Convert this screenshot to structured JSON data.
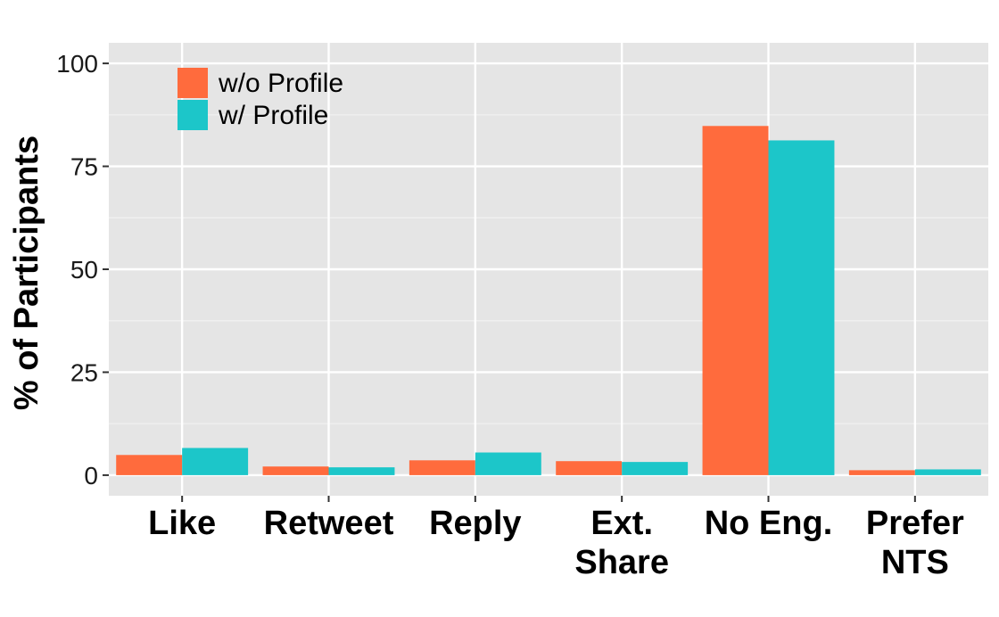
{
  "chart_data": {
    "type": "bar",
    "title": "",
    "xlabel": "",
    "ylabel": "% of Participants",
    "ylim": [
      -5,
      105
    ],
    "yticks": [
      0,
      25,
      50,
      75,
      100
    ],
    "grid": true,
    "legend_position": "top-left",
    "categories": [
      [
        "Like"
      ],
      [
        "Retweet"
      ],
      [
        "Reply"
      ],
      [
        "Ext.",
        "Share"
      ],
      [
        "No Eng."
      ],
      [
        "Prefer",
        "NTS"
      ]
    ],
    "series": [
      {
        "name": "w/o Profile",
        "color": "#FF6B3D",
        "values": [
          4.9,
          2.1,
          3.6,
          3.4,
          84.8,
          1.2
        ]
      },
      {
        "name": "w/ Profile",
        "color": "#1CC6C9",
        "values": [
          6.6,
          1.9,
          5.5,
          3.2,
          81.3,
          1.4
        ]
      }
    ]
  }
}
